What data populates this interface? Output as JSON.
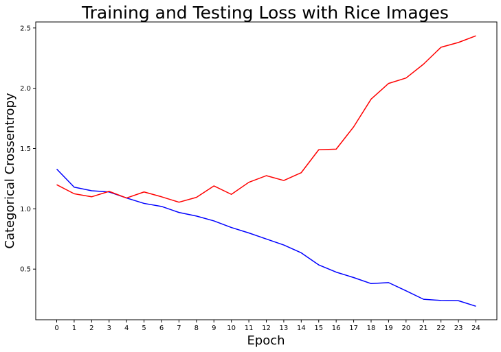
{
  "chart_data": {
    "type": "line",
    "title": "Training and Testing Loss with Rice Images",
    "xlabel": "Epoch",
    "ylabel": "Categorical Crossentropy",
    "x": [
      0,
      1,
      2,
      3,
      4,
      5,
      6,
      7,
      8,
      9,
      10,
      11,
      12,
      13,
      14,
      15,
      16,
      17,
      18,
      19,
      20,
      21,
      22,
      23,
      24
    ],
    "xticks": [
      "0",
      "1",
      "2",
      "3",
      "4",
      "5",
      "6",
      "7",
      "8",
      "9",
      "10",
      "11",
      "12",
      "13",
      "14",
      "15",
      "16",
      "17",
      "18",
      "19",
      "20",
      "21",
      "22",
      "23",
      "24"
    ],
    "yticks": [
      0.5,
      1.0,
      1.5,
      2.0,
      2.5
    ],
    "yticklabels": [
      "0.5",
      "1.0",
      "1.5",
      "2.0",
      "2.5"
    ],
    "xlim": [
      -1.2,
      25.2
    ],
    "ylim": [
      0.08,
      2.55
    ],
    "grid": false,
    "series": [
      {
        "color": "#0000ff",
        "values": [
          1.33,
          1.18,
          1.15,
          1.14,
          1.09,
          1.045,
          1.02,
          0.97,
          0.94,
          0.9,
          0.845,
          0.8,
          0.75,
          0.7,
          0.635,
          0.535,
          0.475,
          0.43,
          0.38,
          0.388,
          0.32,
          0.25,
          0.24,
          0.238,
          0.192
        ]
      },
      {
        "color": "#ff0000",
        "values": [
          1.2,
          1.125,
          1.1,
          1.145,
          1.09,
          1.14,
          1.1,
          1.055,
          1.095,
          1.19,
          1.12,
          1.22,
          1.275,
          1.235,
          1.3,
          1.49,
          1.495,
          1.68,
          1.91,
          2.04,
          2.085,
          2.2,
          2.34,
          2.38,
          2.435
        ]
      }
    ]
  }
}
